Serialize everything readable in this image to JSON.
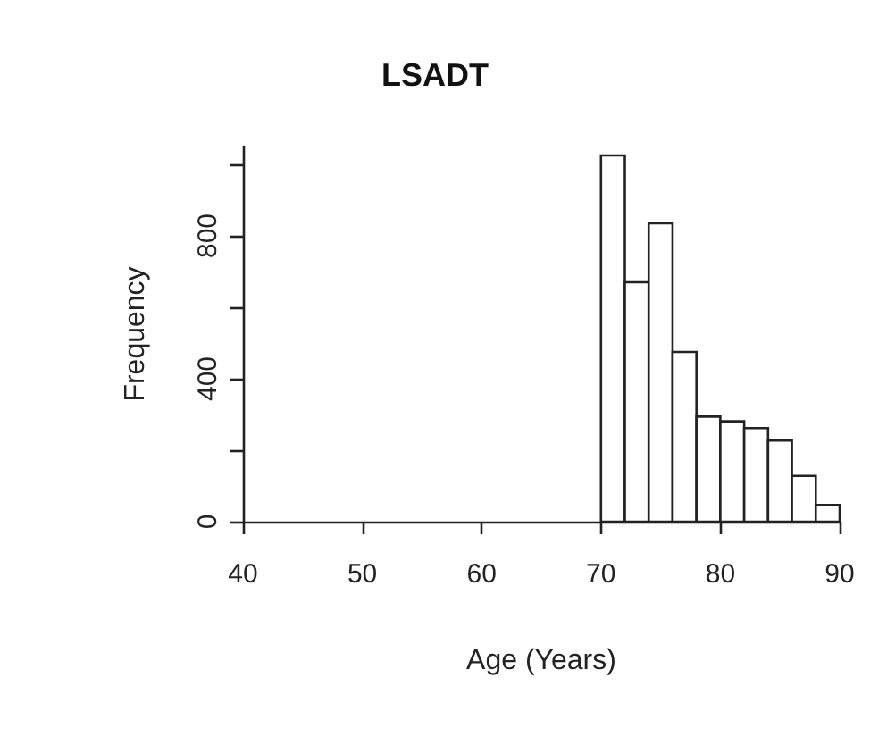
{
  "chart_data": {
    "type": "histogram",
    "title": "LSADT",
    "xlabel": "Age (Years)",
    "ylabel": "Frequency",
    "bins": [
      70,
      72,
      74,
      76,
      78,
      80,
      82,
      84,
      86,
      88,
      90
    ],
    "values": [
      1025,
      670,
      835,
      475,
      294,
      281,
      262,
      227,
      128,
      47
    ],
    "color": "#ffffff",
    "xlim": [
      40,
      90
    ],
    "xticks": [
      40,
      50,
      60,
      70,
      80,
      90
    ],
    "ylim": [
      0,
      1050
    ],
    "yticks": [
      0,
      {
        "value": 200,
        "label": null
      },
      400,
      {
        "value": 600,
        "label": null
      },
      800,
      {
        "value": 1000,
        "label": null
      }
    ],
    "grid": false
  }
}
